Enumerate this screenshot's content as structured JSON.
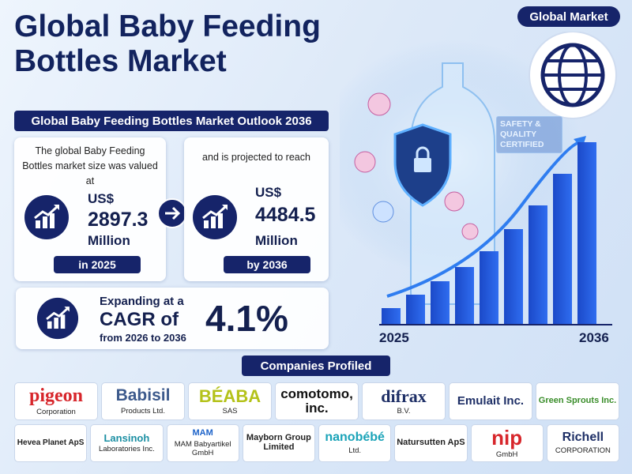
{
  "header": {
    "title": "Global Baby Feeding Bottles Market"
  },
  "badge": "Global Market",
  "outlook": {
    "title": "Global Baby Feeding Bottles Market Outlook 2036",
    "current": {
      "text": "The global Baby Feeding Bottles market size was valued at",
      "currency": "US$",
      "value": "2897.3",
      "unit": "Million",
      "year": "in 2025"
    },
    "projected": {
      "text": "and is projected to reach",
      "currency": "US$",
      "value": "4484.5",
      "unit": "Million",
      "year": "by 2036"
    }
  },
  "cagr": {
    "lead": "Expanding at a",
    "label": "CAGR of",
    "period": "from 2026 to 2036",
    "value": "4.1%"
  },
  "illustration": {
    "certificate": "SAFETY & QUALITY CERTIFIED",
    "start_label": "2025",
    "end_label": "2036"
  },
  "companies": {
    "title": "Companies Profiled",
    "rows": [
      [
        {
          "logo": "pigeon",
          "caption": "Corporation"
        },
        {
          "logo": "Babisil",
          "caption": "Products Ltd."
        },
        {
          "logo": "BÉABA",
          "caption": "SAS"
        },
        {
          "logo": "comotomo, inc."
        },
        {
          "logo": "difrax",
          "caption": "B.V."
        },
        {
          "logo": "Emulait Inc."
        },
        {
          "logo": "Green Sprouts Inc."
        }
      ],
      [
        {
          "logo": "Hevea Planet ApS"
        },
        {
          "logo": "Lansinoh",
          "caption": "Laboratories Inc."
        },
        {
          "logo": "MAM",
          "caption": "MAM Babyartikel GmbH"
        },
        {
          "logo": "Mayborn Group Limited"
        },
        {
          "logo": "nanobébé",
          "caption": "Ltd."
        },
        {
          "logo": "Natursutten ApS"
        },
        {
          "logo": "nip",
          "caption": "GmbH"
        },
        {
          "logo": "Richell",
          "caption": "CORPORATION"
        }
      ]
    ]
  }
}
